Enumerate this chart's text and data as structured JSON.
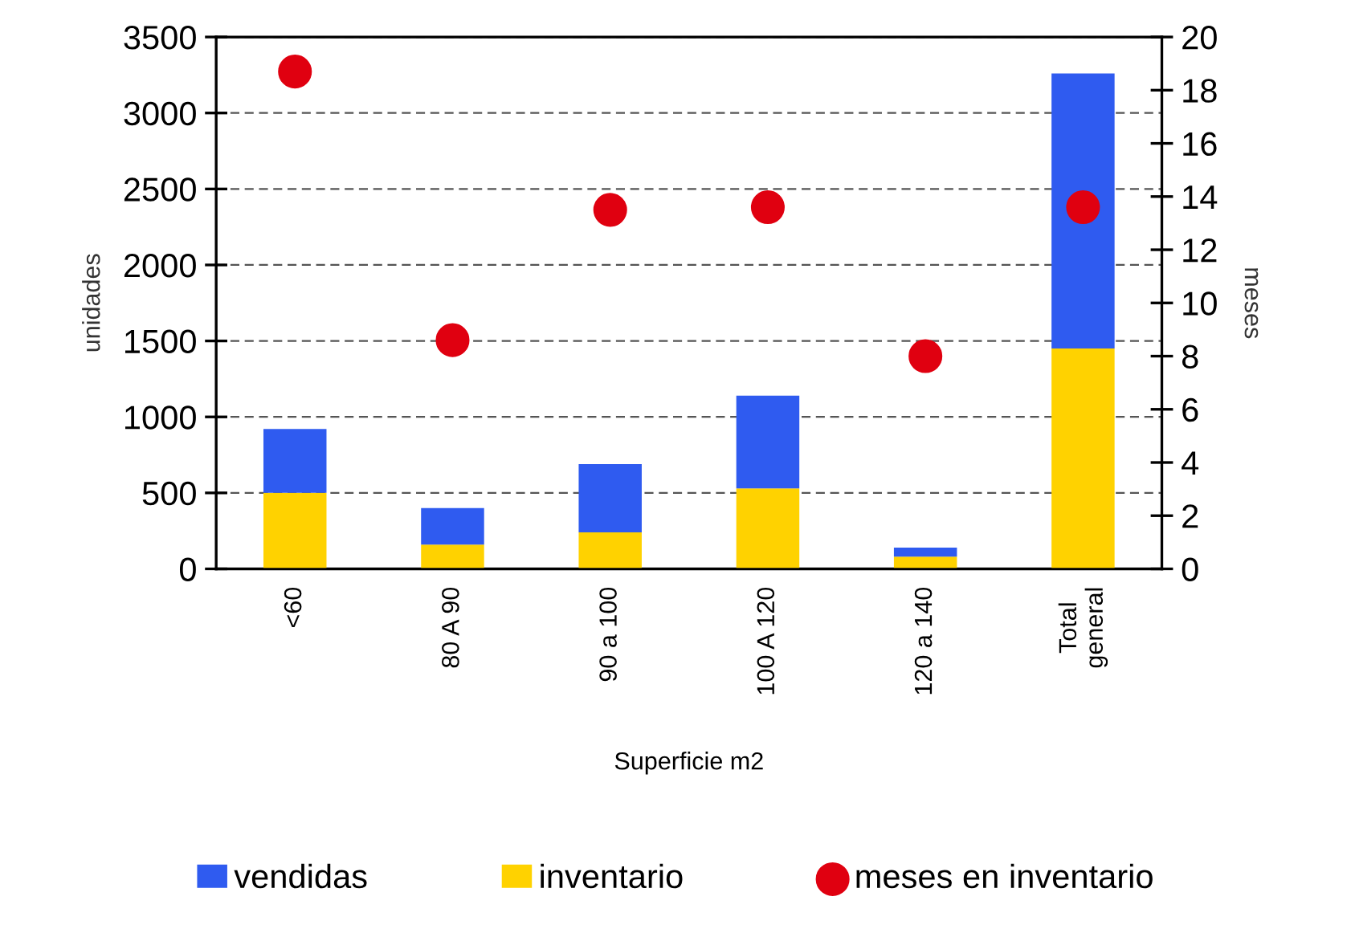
{
  "chart_data": {
    "type": "bar",
    "stacked": true,
    "xlabel": "Superficie m2",
    "ylabel": "unidades",
    "y2label": "meses",
    "categories": [
      "<60",
      "80 A 90",
      "90 a 100",
      "100 A 120",
      "120 a 140",
      "Total\ngeneral"
    ],
    "series": [
      {
        "name": "inventario",
        "color": "#ffd200",
        "values": [
          500,
          160,
          240,
          530,
          80,
          1450
        ]
      },
      {
        "name": "vendidas",
        "color": "#2f5bf0",
        "values": [
          420,
          240,
          450,
          610,
          60,
          1810
        ]
      },
      {
        "name": "meses en inventario",
        "type": "scatter",
        "axis": "y2",
        "color": "#e00010",
        "marker": "circle",
        "values": [
          18.7,
          8.6,
          13.5,
          13.6,
          8.0,
          13.6
        ]
      }
    ],
    "ylim": [
      0,
      3500
    ],
    "yticks": [
      0,
      500,
      1000,
      1500,
      2000,
      2500,
      3000,
      3500
    ],
    "y2lim": [
      0,
      20
    ],
    "y2ticks": [
      0,
      2,
      4,
      6,
      8,
      10,
      12,
      14,
      16,
      18,
      20
    ],
    "grid": "y",
    "legend": "bottom"
  }
}
